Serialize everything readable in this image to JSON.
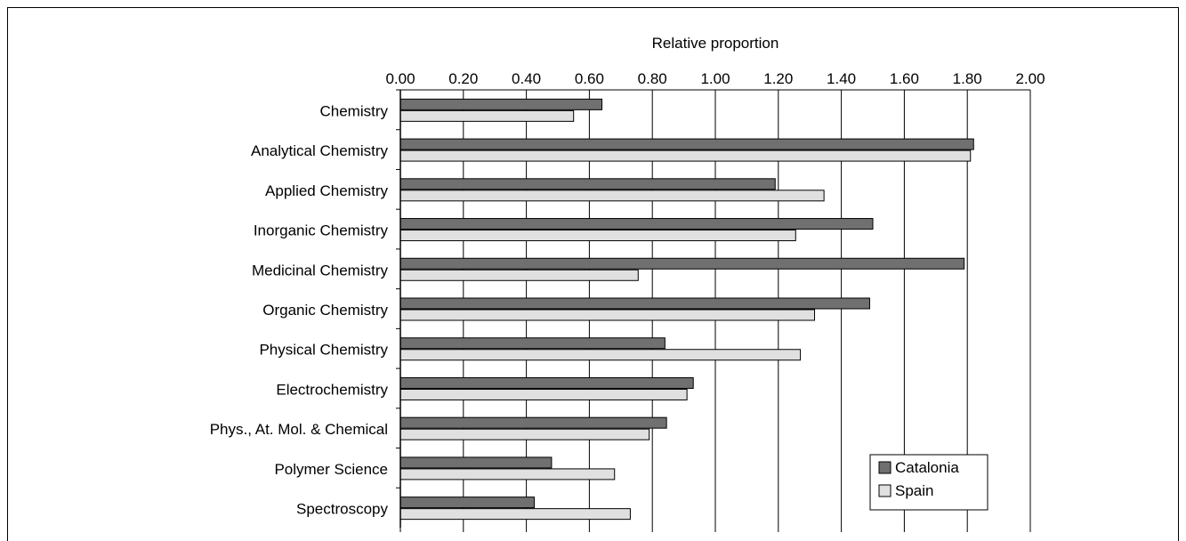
{
  "chart_data": {
    "type": "bar",
    "orientation": "horizontal",
    "title": "",
    "xlabel": "Relative proportion",
    "ylabel": "",
    "xlim": [
      0,
      2.0
    ],
    "xticks": [
      "0.00",
      "0.20",
      "0.40",
      "0.60",
      "0.80",
      "1.00",
      "1.20",
      "1.40",
      "1.60",
      "1.80",
      "2.00"
    ],
    "x_axis_position": "top",
    "grid": "vertical",
    "legend_position": "bottom-right",
    "categories": [
      "Chemistry",
      "Analytical Chemistry",
      "Applied Chemistry",
      "Inorganic Chemistry",
      "Medicinal Chemistry",
      "Organic Chemistry",
      "Physical Chemistry",
      "Electrochemistry",
      "Phys., At. Mol. & Chemical",
      "Polymer Science",
      "Spectroscopy"
    ],
    "series": [
      {
        "name": "Catalonia",
        "color": "#707070",
        "values": [
          0.64,
          1.82,
          1.19,
          1.5,
          1.79,
          1.49,
          0.84,
          0.93,
          0.845,
          0.48,
          0.425
        ]
      },
      {
        "name": "Spain",
        "color": "#e0e0e0",
        "values": [
          0.55,
          1.81,
          1.345,
          1.255,
          0.755,
          1.315,
          1.27,
          0.91,
          0.79,
          0.68,
          0.73
        ]
      }
    ]
  }
}
